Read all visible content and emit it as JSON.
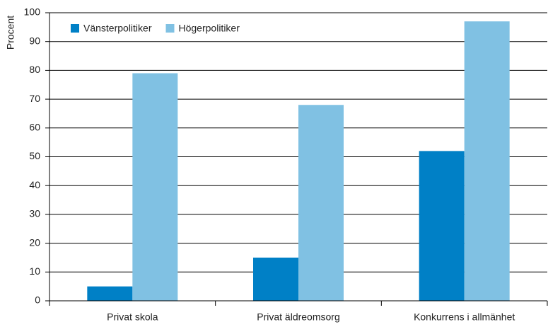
{
  "chart_data": {
    "type": "bar",
    "y_label": "Procent",
    "categories": [
      "Privat skola",
      "Privat äldreomsorg",
      "Konkurrens i allmänhet"
    ],
    "series": [
      {
        "name": "Vänsterpolitiker",
        "color": "#0080c6",
        "values": [
          5,
          15,
          52
        ]
      },
      {
        "name": "Högerpolitiker",
        "color": "#80c1e3",
        "values": [
          79,
          68,
          97
        ]
      }
    ],
    "ylim": [
      0,
      100
    ],
    "yticks": [
      0,
      10,
      20,
      30,
      40,
      50,
      60,
      70,
      80,
      90,
      100
    ],
    "grid": true,
    "legend": "top-left"
  }
}
